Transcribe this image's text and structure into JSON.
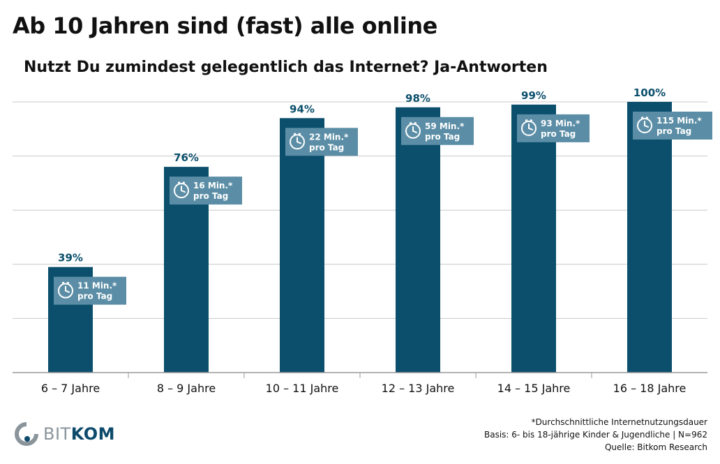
{
  "title": "Ab 10 Jahren sind (fast) alle online",
  "subtitle": "Nutzt Du zumindest gelegentlich das Internet? Ja-Antworten",
  "colors": {
    "bar": "#0b4f6c",
    "badge": "#5b8ea6",
    "grid": "#c8c8c8",
    "value_label": "#0b4f6c"
  },
  "chart_data": {
    "type": "bar",
    "categories": [
      "6 – 7 Jahre",
      "8 – 9 Jahre",
      "10 – 11 Jahre",
      "12 – 13 Jahre",
      "14 – 15 Jahre",
      "16 – 18 Jahre"
    ],
    "values": [
      39,
      76,
      94,
      98,
      99,
      100
    ],
    "value_labels": [
      "39%",
      "76%",
      "94%",
      "98%",
      "99%",
      "100%"
    ],
    "ylim": [
      0,
      100
    ],
    "grid": true,
    "annotations": [
      {
        "line1": "11 Min.*",
        "line2": "pro Tag",
        "icon": "clock-icon"
      },
      {
        "line1": "16 Min.*",
        "line2": "pro Tag",
        "icon": "clock-icon"
      },
      {
        "line1": "22 Min.*",
        "line2": "pro Tag",
        "icon": "clock-icon"
      },
      {
        "line1": "59 Min.*",
        "line2": "pro Tag",
        "icon": "clock-icon"
      },
      {
        "line1": "93 Min.*",
        "line2": "pro Tag",
        "icon": "clock-icon"
      },
      {
        "line1": "115 Min.*",
        "line2": "pro Tag",
        "icon": "clock-icon"
      }
    ]
  },
  "footnotes": {
    "note": "*Durchschnittliche Internetnutzungsdauer",
    "basis": "Basis: 6- bis 18-jährige Kinder & Jugendliche | N=962",
    "source": "Quelle: Bitkom Research"
  },
  "logo": {
    "prefix": "BIT",
    "suffix": "KOM",
    "icon": "bitkom-logo-icon"
  }
}
